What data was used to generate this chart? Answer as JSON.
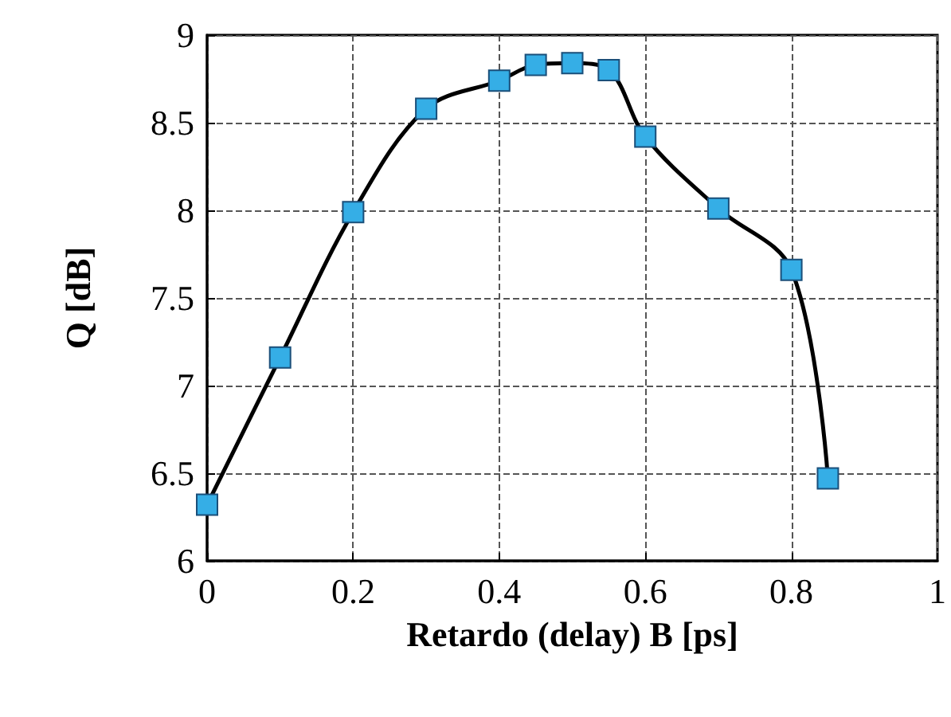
{
  "chart_data": {
    "type": "line",
    "xlabel": "Retardo (delay) B [ps]",
    "ylabel": "Q [dB]",
    "x": [
      0,
      0.1,
      0.2,
      0.3,
      0.4,
      0.45,
      0.5,
      0.55,
      0.6,
      0.7,
      0.8,
      0.85
    ],
    "series": [
      {
        "color": "#35aee6",
        "values": [
          6.32,
          7.16,
          7.99,
          8.58,
          8.74,
          8.83,
          8.84,
          8.8,
          8.42,
          8.01,
          7.66,
          6.47
        ]
      }
    ],
    "xlim": [
      0,
      1
    ],
    "xticks": [
      0,
      0.2,
      0.4,
      0.6,
      0.8,
      1
    ],
    "ylim": [
      6,
      9
    ],
    "yticks": [
      6,
      6.5,
      7,
      7.5,
      8,
      8.5,
      9
    ],
    "grid": true,
    "marker": "square",
    "line_style": "solid"
  }
}
